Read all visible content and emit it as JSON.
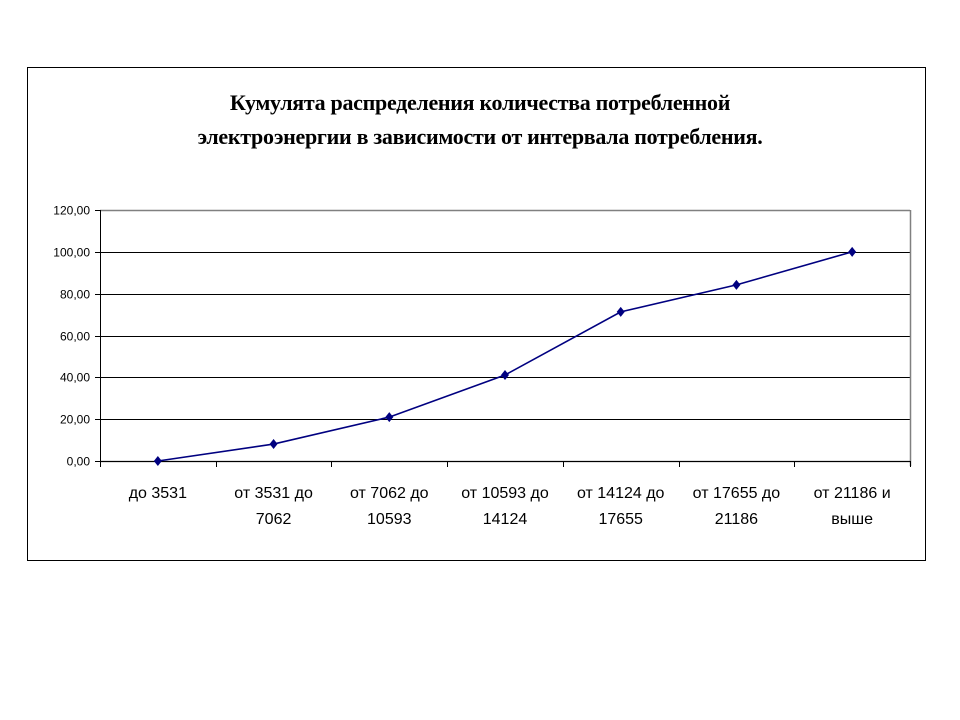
{
  "chart_data": {
    "type": "line",
    "title": "Кумулята распределения количества потребленной электроэнергии в зависимости от интервала потребления.",
    "title_lines": [
      "Кумулята распределения количества потребленной",
      "электроэнергии в зависимости от интервала потребления."
    ],
    "xlabel": "",
    "ylabel": "",
    "categories": [
      "до 3531",
      "от 3531 до 7062",
      "от 7062 до 10593",
      "от 10593 до 14124",
      "от 14124 до 17655",
      "от 17655 до 21186",
      "от 21186 и выше"
    ],
    "category_lines": [
      [
        "до 3531",
        ""
      ],
      [
        "от 3531 до",
        "7062"
      ],
      [
        "от 7062 до",
        "10593"
      ],
      [
        "от 10593 до",
        "14124"
      ],
      [
        "от 14124 до",
        "17655"
      ],
      [
        "от 17655 до",
        "21186"
      ],
      [
        "от 21186 и",
        "выше"
      ]
    ],
    "series": [
      {
        "name": "Кумулята",
        "values": [
          0,
          8.1,
          21.0,
          41.1,
          71.3,
          84.2,
          100.0
        ],
        "color": "#000080",
        "marker": "diamond"
      }
    ],
    "ylim": [
      0,
      120
    ],
    "yticks": [
      0,
      20,
      40,
      60,
      80,
      100,
      120
    ],
    "ytick_labels": [
      "0,00",
      "20,00",
      "40,00",
      "60,00",
      "80,00",
      "100,00",
      "120,00"
    ],
    "grid": true,
    "legend": null
  }
}
